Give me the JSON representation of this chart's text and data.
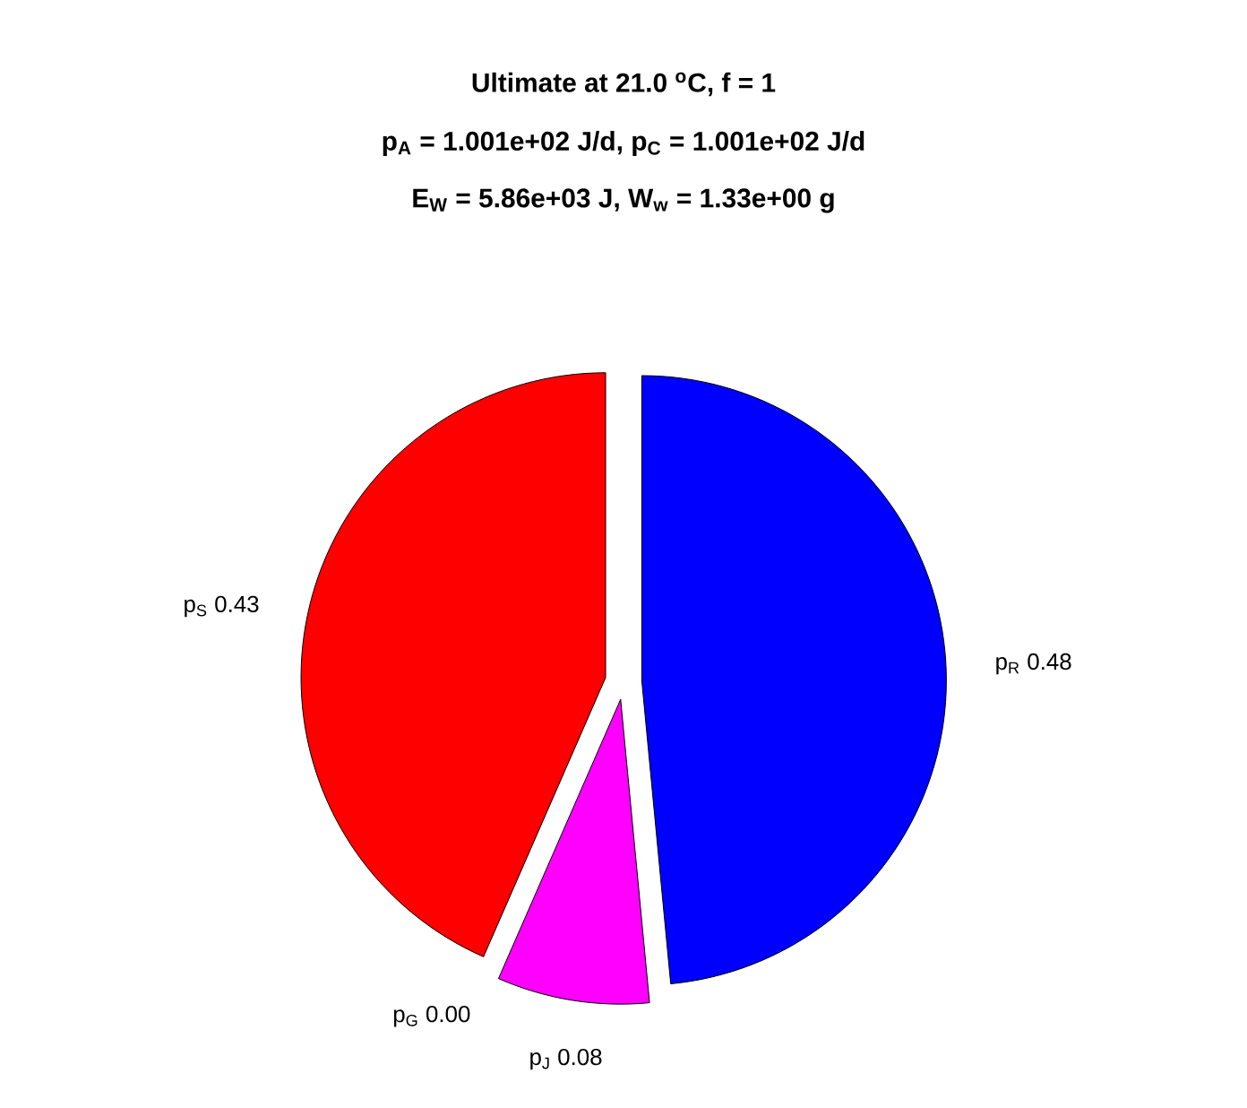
{
  "chart_data": {
    "type": "pie",
    "title": "Ultimate at 21.0 $^{o}$C, f = 1",
    "subtitle": "p$_{A}$ = 1.001e+02 J/d, p$_{C}$ = 1.001e+02 J/d",
    "annotations": [
      "E$_{W}$ = 5.86e+03 J, W$_{w}$ = 1.33e+00 g"
    ],
    "categories": [
      "p$_{R}$",
      "p$_{J}$",
      "p$_{G}$",
      "p$_{S}$"
    ],
    "values": [
      0.48,
      0.08,
      0.0,
      0.43
    ],
    "value_labels": [
      "0.48",
      "0.08",
      "0.00",
      "0.43"
    ],
    "colors": [
      "#0000ff",
      "#ff00ff",
      null,
      "#ff0000"
    ]
  }
}
